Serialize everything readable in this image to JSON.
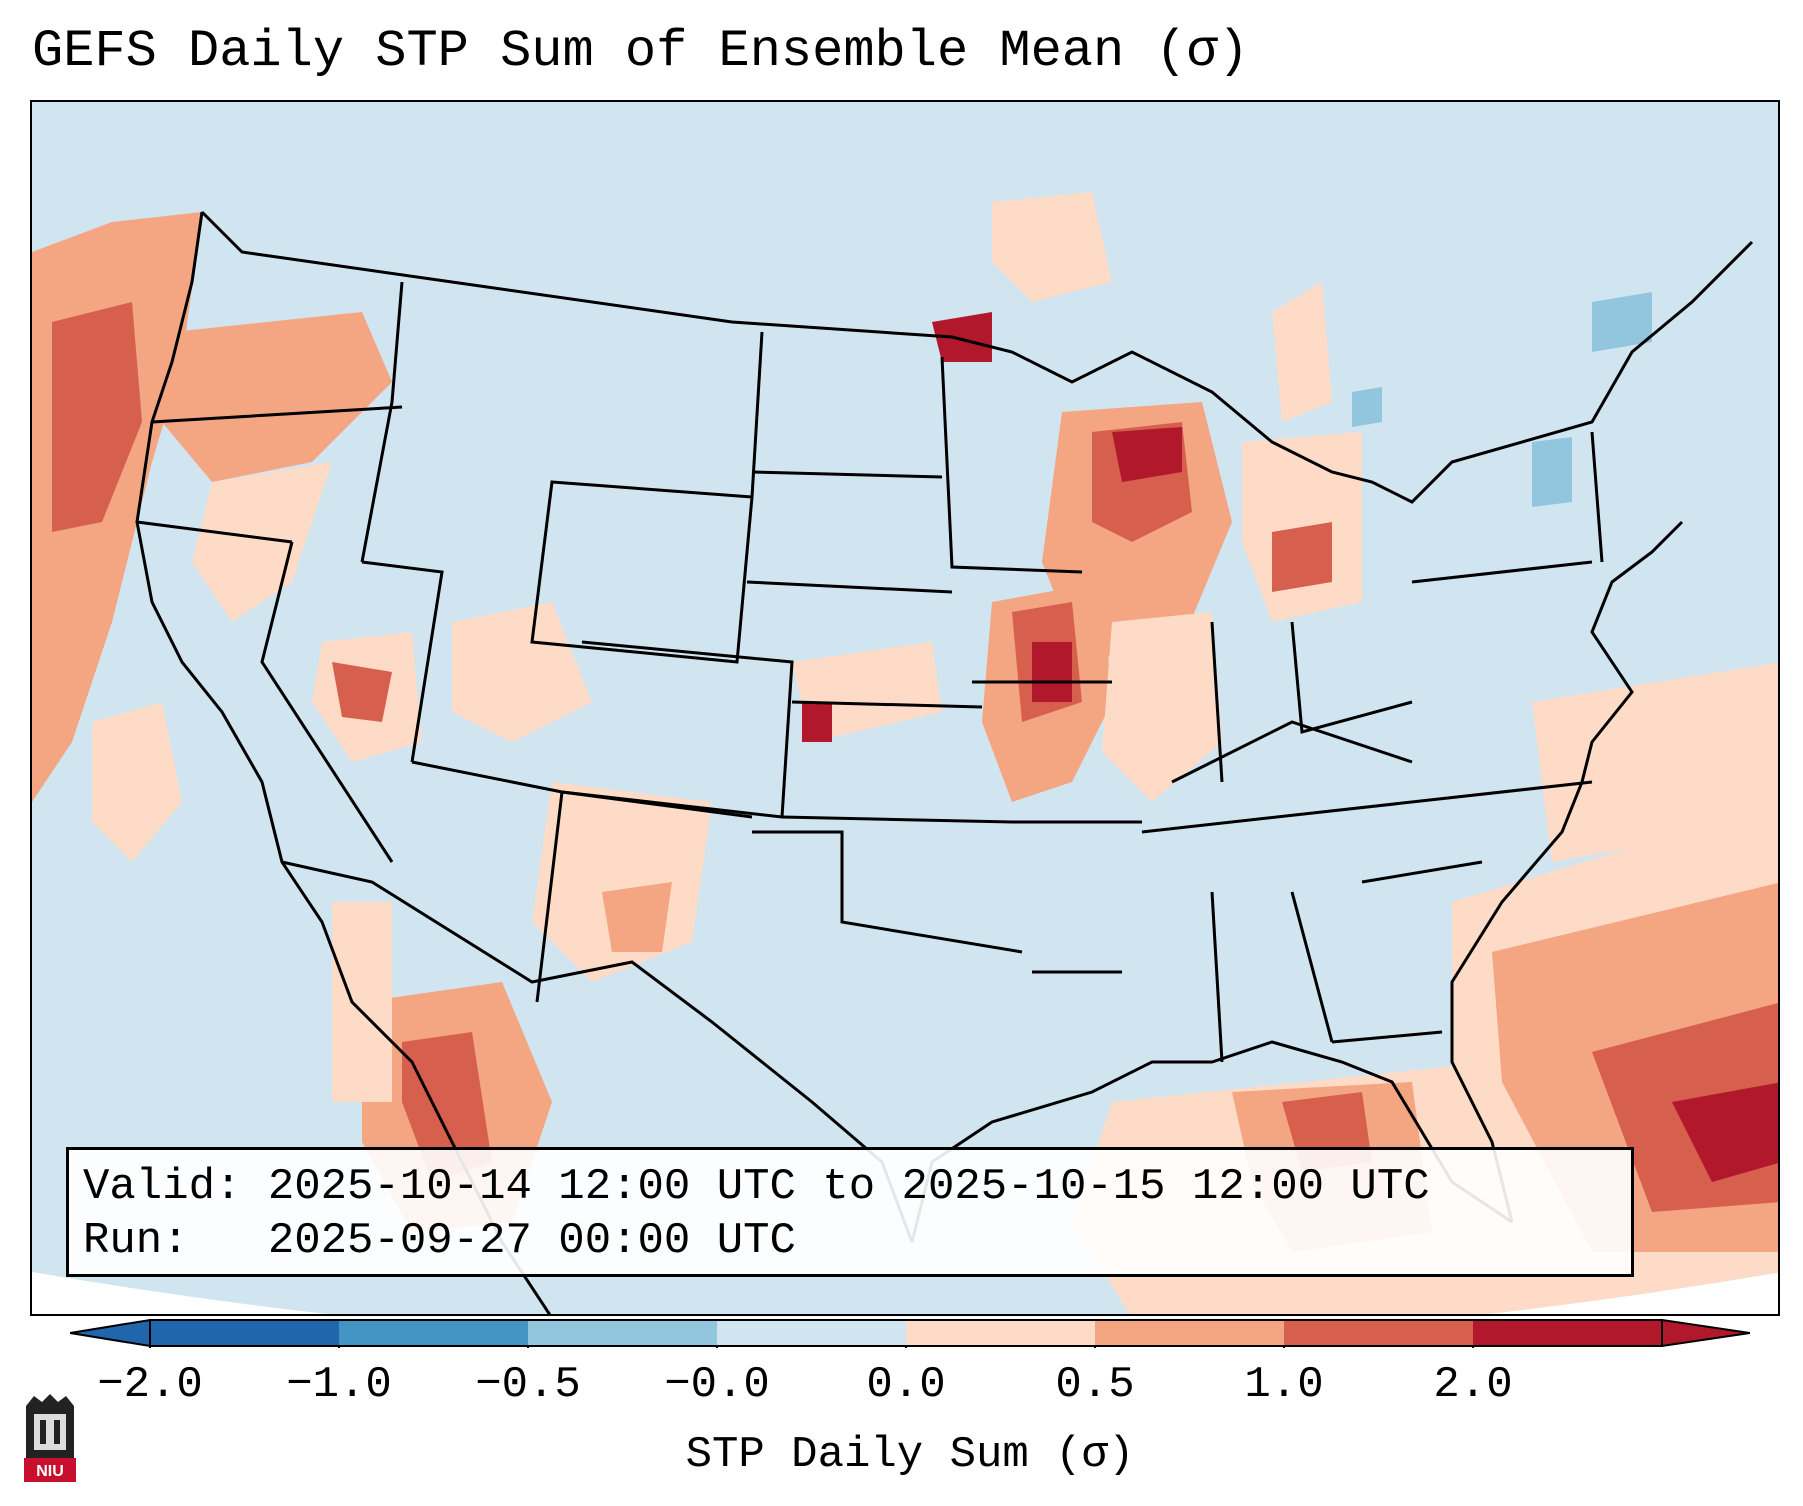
{
  "title": "GEFS Daily STP Sum of Ensemble Mean (σ)",
  "valid_label": "Valid:",
  "valid_value": "2025-10-14 12:00 UTC to 2025-10-15 12:00 UTC",
  "run_label": "Run:",
  "run_value": "2025-09-27 00:00 UTC",
  "colorbar": {
    "ticks": [
      "−2.0",
      "−1.0",
      "−0.5",
      "−0.0",
      "0.0",
      "0.5",
      "1.0",
      "2.0"
    ],
    "label": "STP Daily Sum (σ)",
    "colors": [
      "#2166ac",
      "#4393c3",
      "#92c5de",
      "#d1e5f0",
      "#fddbc7",
      "#f4a582",
      "#d6604d",
      "#b2182b"
    ],
    "under_color": "#2166ac",
    "over_color": "#b2182b"
  },
  "logo_text": "NIU",
  "map_colors": {
    "ocean_land": "#d1e5f0",
    "outline": "#000000"
  }
}
